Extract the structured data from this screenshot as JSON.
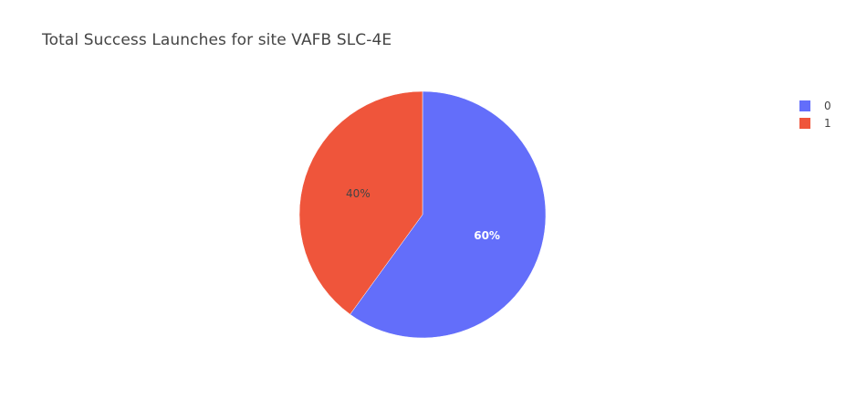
{
  "chart_data": {
    "type": "pie",
    "title": "Total Success Launches for site VAFB SLC-4E",
    "labels": [
      "0",
      "1"
    ],
    "values": [
      60,
      40
    ],
    "percent_labels": [
      "60%",
      "40%"
    ],
    "colors": [
      "#636efa",
      "#ef553b"
    ],
    "label_text_colors": [
      "#ffffff",
      "#444444"
    ],
    "legend_position": "top-right",
    "direction": "clockwise",
    "start_angle": "top"
  }
}
